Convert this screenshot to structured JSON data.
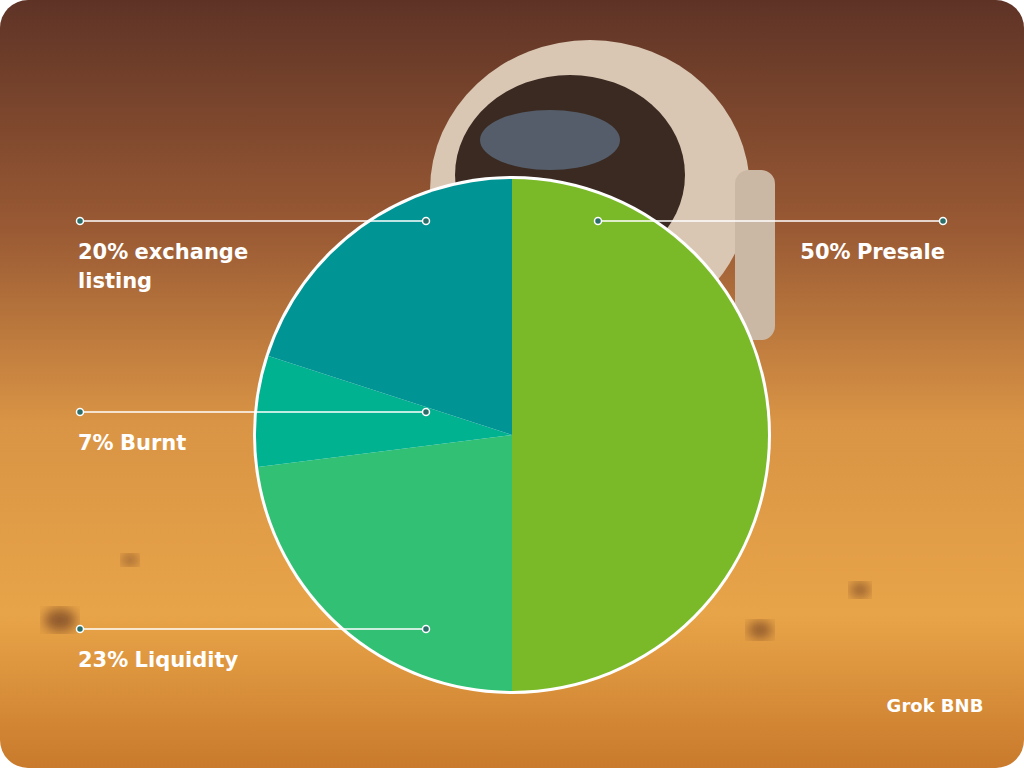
{
  "chart_data": {
    "type": "pie",
    "categories": [
      "Presale",
      "Liquidity",
      "Burnt",
      "exchange listing"
    ],
    "values": [
      50,
      23,
      7,
      20
    ],
    "value_labels": [
      "50%",
      "23%",
      "7%",
      "20%"
    ],
    "colors": [
      "#7aba28",
      "#31c074",
      "#00b28f",
      "#009494"
    ],
    "annotations": [
      "Grok BNB"
    ]
  }
}
